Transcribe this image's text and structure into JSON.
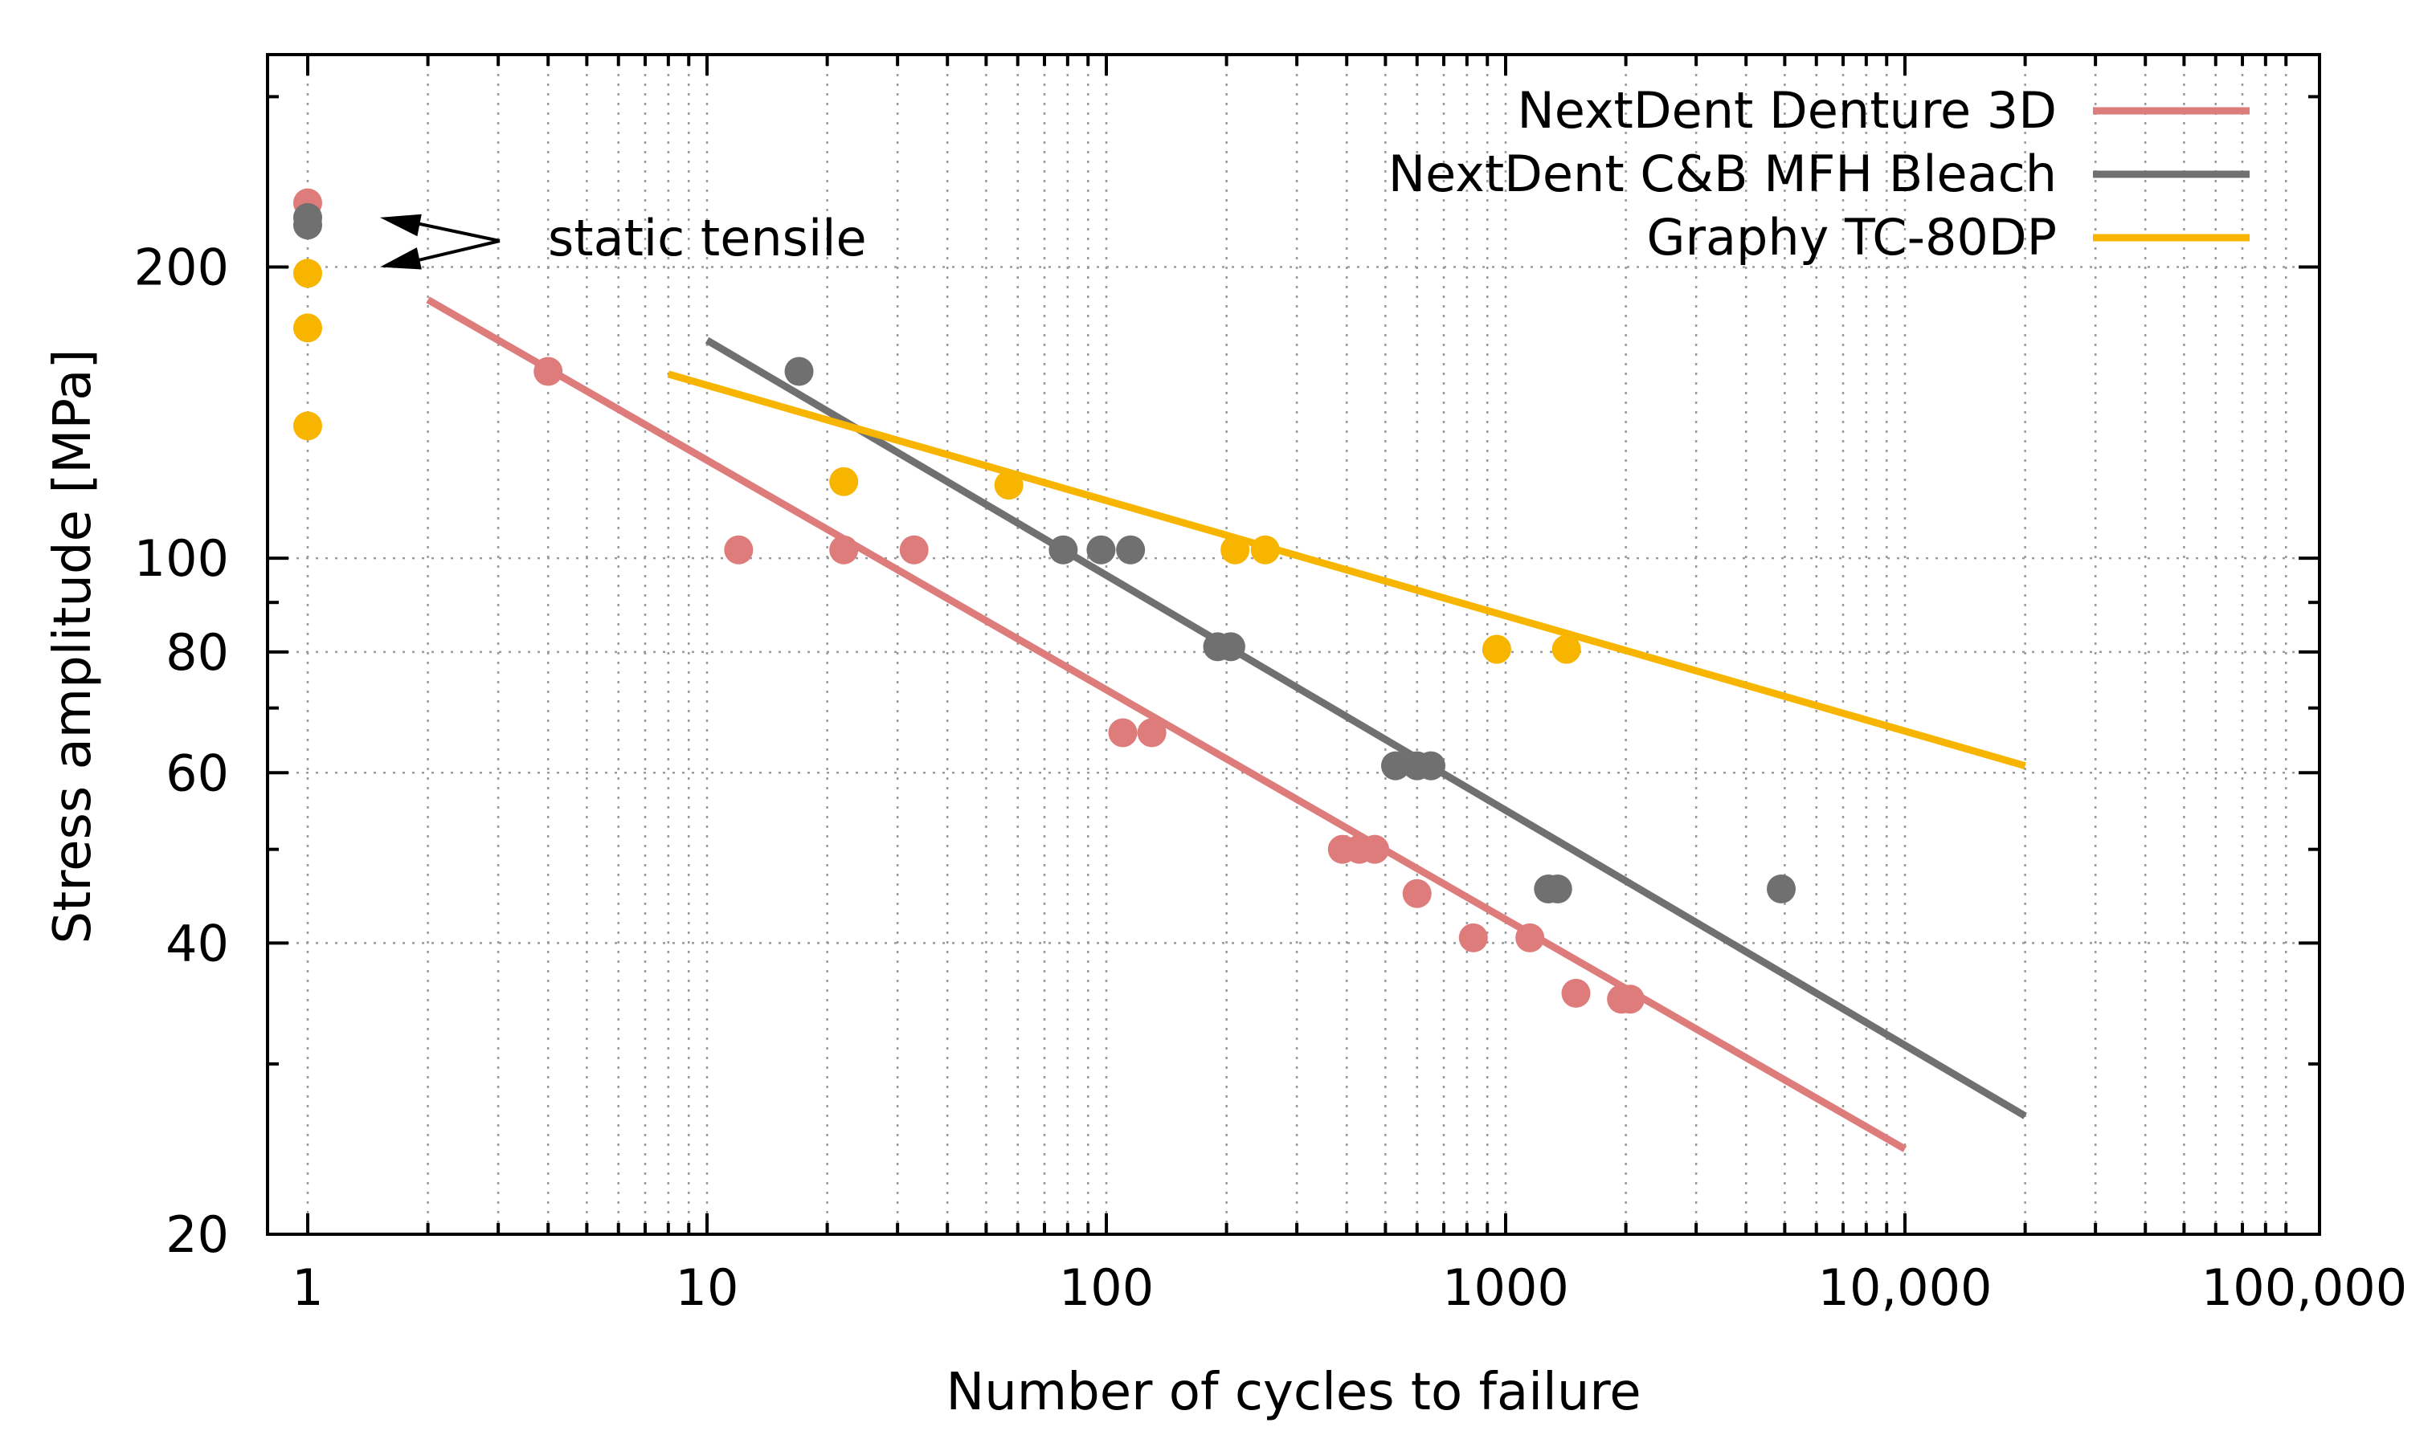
{
  "chart_data": {
    "type": "scatter",
    "xscale": "log",
    "yscale": "log",
    "xlabel": "Number of cycles to failure",
    "ylabel": "Stress amplitude [MPa]",
    "xlim": [
      0.8,
      100000
    ],
    "ylim": [
      20,
      320
    ],
    "xticks": [
      1,
      10,
      100,
      1000,
      10000,
      100000
    ],
    "xtick_labels": [
      "1",
      "10",
      "100",
      "1000",
      "10,000",
      "100,000"
    ],
    "yticks": [
      20,
      40,
      60,
      80,
      100,
      200
    ],
    "ytick_labels": [
      "20",
      "40",
      "60",
      "80",
      "100",
      "200"
    ],
    "grid": true,
    "legend_position": "top-right",
    "annotation": {
      "text": "static tensile",
      "arrow_targets": [
        [
          1,
          225
        ],
        [
          1,
          200
        ]
      ]
    },
    "series": [
      {
        "name": "NextDent Denture 3D",
        "color": "#de7c7c",
        "points": [
          [
            1,
            233
          ],
          [
            4,
            156
          ],
          [
            12,
            102
          ],
          [
            22,
            102
          ],
          [
            33,
            102
          ],
          [
            110,
            66
          ],
          [
            130,
            66
          ],
          [
            390,
            50
          ],
          [
            430,
            50
          ],
          [
            470,
            50
          ],
          [
            600,
            45
          ],
          [
            830,
            40.5
          ],
          [
            1150,
            40.5
          ],
          [
            1500,
            35.5
          ],
          [
            1950,
            35
          ],
          [
            2050,
            35
          ]
        ],
        "fit": [
          [
            2,
            185
          ],
          [
            10000,
            24.5
          ]
        ]
      },
      {
        "name": "NextDent C&B MFH Bleach",
        "color": "#707070",
        "points": [
          [
            1,
            225
          ],
          [
            1,
            221
          ],
          [
            17,
            156
          ],
          [
            78,
            102
          ],
          [
            97,
            102
          ],
          [
            115,
            102
          ],
          [
            190,
            81
          ],
          [
            205,
            81
          ],
          [
            530,
            61
          ],
          [
            600,
            61
          ],
          [
            650,
            61
          ],
          [
            1280,
            45.5
          ],
          [
            1350,
            45.5
          ],
          [
            4900,
            45.5
          ]
        ],
        "fit": [
          [
            10,
            168
          ],
          [
            20000,
            26.5
          ]
        ]
      },
      {
        "name": "Graphy TC-80DP",
        "color": "#f7b500",
        "points": [
          [
            1,
            197
          ],
          [
            1,
            173
          ],
          [
            1,
            137
          ],
          [
            22,
            120
          ],
          [
            57,
            119
          ],
          [
            210,
            102
          ],
          [
            250,
            102
          ],
          [
            950,
            80.5
          ],
          [
            1420,
            80.5
          ]
        ],
        "fit": [
          [
            8,
            155
          ],
          [
            20000,
            61
          ]
        ]
      }
    ]
  }
}
